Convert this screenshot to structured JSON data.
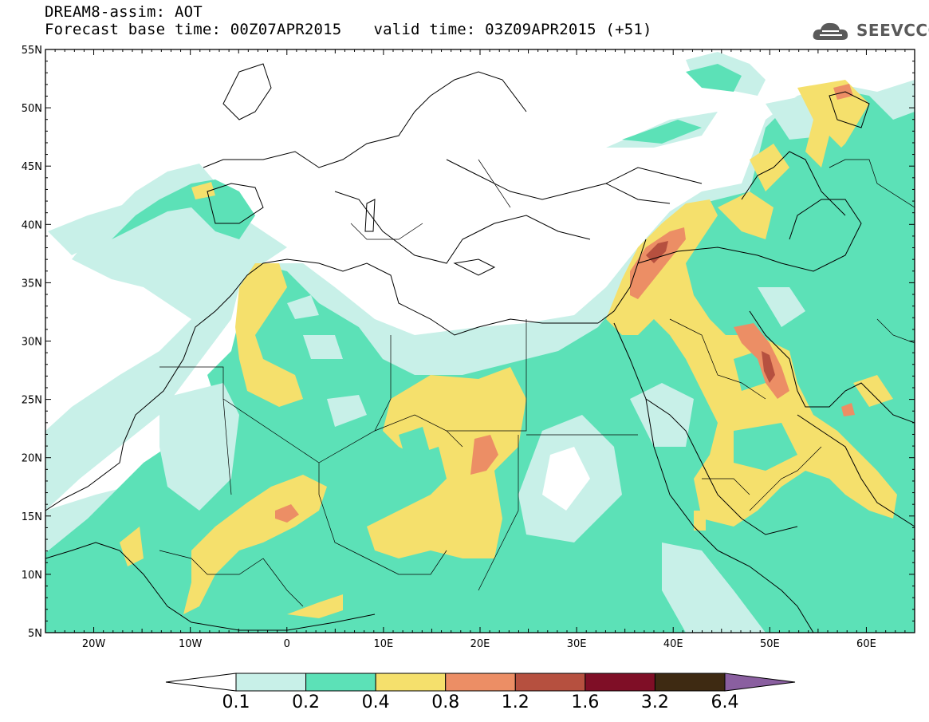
{
  "header": {
    "line1": "DREAM8-assim: AOT",
    "base_time": "Forecast base time: 00Z07APR2015",
    "valid_time": "valid time: 03Z09APR2015 (+51)"
  },
  "logo": {
    "text": "SEEVCCC",
    "icon": "cloud-icon"
  },
  "map": {
    "lat_labels": [
      "55N",
      "50N",
      "45N",
      "40N",
      "35N",
      "30N",
      "25N",
      "20N",
      "15N",
      "10N",
      "5N"
    ],
    "lon_labels": [
      "20W",
      "10W",
      "0",
      "10E",
      "20E",
      "30E",
      "40E",
      "50E",
      "60E"
    ],
    "lat_values": [
      55,
      50,
      45,
      40,
      35,
      30,
      25,
      20,
      15,
      10,
      5
    ],
    "lon_values": [
      -20,
      -10,
      0,
      10,
      20,
      30,
      40,
      50,
      60
    ],
    "extent": {
      "lon_min": -25,
      "lon_max": 65,
      "lat_min": 5,
      "lat_max": 55
    },
    "variable": "AOT"
  },
  "colorbar": {
    "levels": [
      "0.1",
      "0.2",
      "0.4",
      "0.8",
      "1.2",
      "1.6",
      "3.2",
      "6.4"
    ],
    "colors": [
      "#ffffff",
      "#c8f0e8",
      "#5ce1b7",
      "#f5e06c",
      "#ec8e65",
      "#b6503f",
      "#7f0e26",
      "#3e2a12",
      "#8a5fa0"
    ]
  }
}
